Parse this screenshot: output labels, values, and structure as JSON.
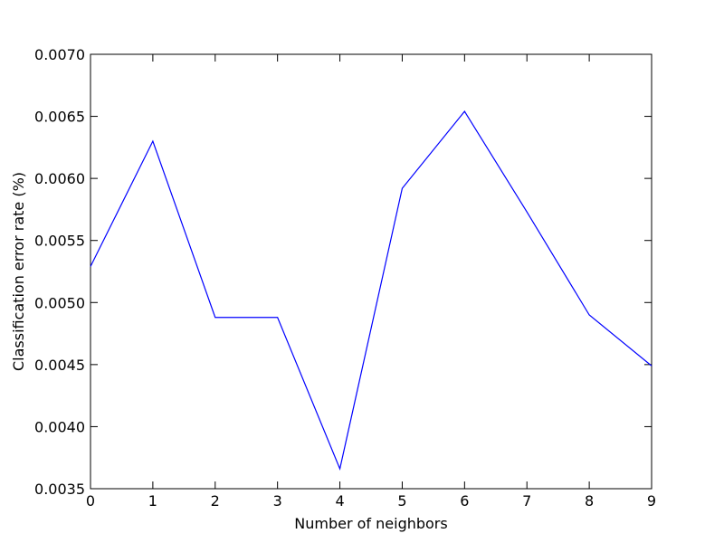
{
  "chart_data": {
    "type": "line",
    "title": "",
    "xlabel": "Number of neighbors",
    "ylabel": "Classification error rate (%)",
    "xlim": [
      0,
      9
    ],
    "ylim": [
      0.0035,
      0.007
    ],
    "x_ticks": [
      "0",
      "1",
      "2",
      "3",
      "4",
      "5",
      "6",
      "7",
      "8",
      "9"
    ],
    "y_ticks": [
      "0.0035",
      "0.0040",
      "0.0045",
      "0.0050",
      "0.0055",
      "0.0060",
      "0.0065",
      "0.0070"
    ],
    "x": [
      0,
      1,
      2,
      3,
      4,
      5,
      6,
      7,
      8,
      9
    ],
    "series": [
      {
        "color": "#0000ff",
        "values": [
          0.00529,
          0.0063,
          0.00488,
          0.00488,
          0.00366,
          0.00592,
          0.00654,
          0.00573,
          0.0049,
          0.00449
        ]
      }
    ],
    "grid": false,
    "legend": "none"
  }
}
